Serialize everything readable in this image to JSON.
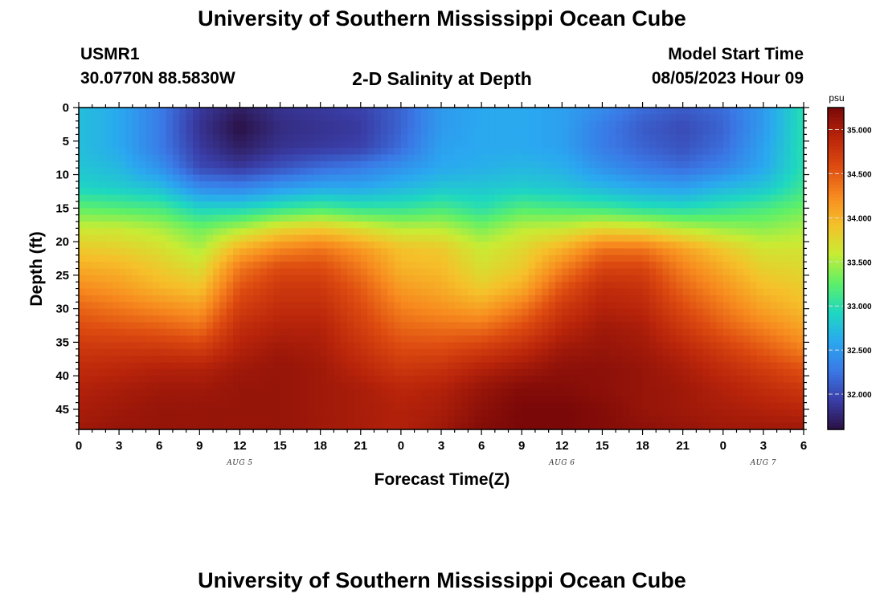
{
  "page": {
    "title_top": "University of Southern Mississippi Ocean Cube",
    "title_bottom": "University of Southern Mississippi Ocean Cube",
    "station_id": "USMR1",
    "station_coords": "30.0770N  88.5830W",
    "plot_title": "2-D Salinity at Depth",
    "model_start_label": "Model Start Time",
    "model_start_value": "08/05/2023 Hour 09"
  },
  "chart_data": {
    "type": "heatmap",
    "title": "2-D Salinity at Depth",
    "xlabel": "Forecast Time(Z)",
    "ylabel": "Depth (ft)",
    "x_tick_labels": [
      "0",
      "3",
      "6",
      "9",
      "12",
      "15",
      "18",
      "21",
      "0",
      "3",
      "6",
      "9",
      "12",
      "15",
      "18",
      "21",
      "0",
      "3",
      "6"
    ],
    "x_range_hours": [
      0,
      54
    ],
    "date_labels": [
      {
        "text": "AUG 5",
        "hour": 12
      },
      {
        "text": "AUG 6",
        "hour": 36
      },
      {
        "text": "AUG 7",
        "hour": 51
      }
    ],
    "y_ticks": [
      0,
      5,
      10,
      15,
      20,
      25,
      30,
      35,
      40,
      45
    ],
    "y_tick_labels": [
      "0",
      "5",
      "10",
      "15",
      "20",
      "25",
      "30",
      "35",
      "40",
      "45"
    ],
    "ylim": [
      0,
      48
    ],
    "y_inverted": true,
    "colorbar": {
      "unit": "psu",
      "min": 31.6,
      "max": 35.25,
      "ticks": [
        32.0,
        32.5,
        33.0,
        33.5,
        34.0,
        34.5,
        35.0
      ],
      "tick_labels": [
        "32.000",
        "32.500",
        "33.000",
        "33.500",
        "34.000",
        "34.500",
        "35.000"
      ],
      "colors": [
        "#2b1145",
        "#3a3ea8",
        "#3a78e6",
        "#2aa8f0",
        "#1ed8c0",
        "#5ef068",
        "#c8ec34",
        "#f6c02a",
        "#f7881e",
        "#dd4a10",
        "#b8240a",
        "#7a0808"
      ]
    },
    "time_hours": [
      0,
      3,
      6,
      9,
      12,
      15,
      18,
      21,
      24,
      27,
      30,
      33,
      36,
      39,
      42,
      45,
      48,
      51,
      54
    ],
    "depth_ft": [
      0,
      3,
      6,
      9,
      12,
      15,
      18,
      21,
      24,
      27,
      30,
      33,
      36,
      39,
      42,
      45,
      48
    ],
    "salinity_psu": [
      [
        32.75,
        32.6,
        32.3,
        31.9,
        31.7,
        31.85,
        31.9,
        31.95,
        32.15,
        32.5,
        32.6,
        32.6,
        32.55,
        32.4,
        32.2,
        32.1,
        32.2,
        32.5,
        33.0
      ],
      [
        32.75,
        32.6,
        32.3,
        31.85,
        31.6,
        31.8,
        31.85,
        31.9,
        32.15,
        32.5,
        32.6,
        32.6,
        32.55,
        32.3,
        32.1,
        32.0,
        32.15,
        32.5,
        33.0
      ],
      [
        32.75,
        32.6,
        32.3,
        31.9,
        31.7,
        31.85,
        31.9,
        31.95,
        32.2,
        32.55,
        32.6,
        32.6,
        32.55,
        32.3,
        32.15,
        32.05,
        32.2,
        32.55,
        33.0
      ],
      [
        32.8,
        32.7,
        32.45,
        32.0,
        31.9,
        32.05,
        32.2,
        32.3,
        32.45,
        32.6,
        32.65,
        32.7,
        32.65,
        32.45,
        32.3,
        32.2,
        32.35,
        32.6,
        33.0
      ],
      [
        32.9,
        32.85,
        32.75,
        32.4,
        32.35,
        32.5,
        32.6,
        32.6,
        32.7,
        32.8,
        32.8,
        32.85,
        32.8,
        32.7,
        32.6,
        32.55,
        32.7,
        32.8,
        33.1
      ],
      [
        33.25,
        33.2,
        33.15,
        32.9,
        32.9,
        33.05,
        33.15,
        33.05,
        33.05,
        33.15,
        33.0,
        33.2,
        33.15,
        33.1,
        33.0,
        32.95,
        33.05,
        33.15,
        33.3
      ],
      [
        33.6,
        33.6,
        33.5,
        33.3,
        33.5,
        33.75,
        33.85,
        33.7,
        33.55,
        33.55,
        33.35,
        33.55,
        33.6,
        33.75,
        33.7,
        33.55,
        33.45,
        33.4,
        33.5
      ],
      [
        33.85,
        33.8,
        33.7,
        33.5,
        34.0,
        34.25,
        34.35,
        34.15,
        33.9,
        33.85,
        33.6,
        33.75,
        34.0,
        34.35,
        34.35,
        34.1,
        33.85,
        33.65,
        33.65
      ],
      [
        34.05,
        34.0,
        33.85,
        33.7,
        34.35,
        34.6,
        34.6,
        34.35,
        34.0,
        33.95,
        33.7,
        33.85,
        34.3,
        34.65,
        34.65,
        34.3,
        34.05,
        33.8,
        33.75
      ],
      [
        34.25,
        34.15,
        34.0,
        33.9,
        34.55,
        34.75,
        34.75,
        34.5,
        34.15,
        34.05,
        33.85,
        34.05,
        34.55,
        34.85,
        34.8,
        34.45,
        34.2,
        33.95,
        33.85
      ],
      [
        34.45,
        34.35,
        34.25,
        34.15,
        34.7,
        34.85,
        34.85,
        34.6,
        34.3,
        34.2,
        34.1,
        34.35,
        34.75,
        34.95,
        34.9,
        34.6,
        34.35,
        34.1,
        33.95
      ],
      [
        34.6,
        34.55,
        34.5,
        34.4,
        34.85,
        34.95,
        34.95,
        34.7,
        34.45,
        34.4,
        34.4,
        34.6,
        34.9,
        35.05,
        35.0,
        34.75,
        34.5,
        34.3,
        34.1
      ],
      [
        34.75,
        34.75,
        34.75,
        34.7,
        34.95,
        35.05,
        35.0,
        34.8,
        34.6,
        34.6,
        34.7,
        34.85,
        35.05,
        35.1,
        35.05,
        34.9,
        34.7,
        34.5,
        34.3
      ],
      [
        34.85,
        34.9,
        34.95,
        34.95,
        35.05,
        35.1,
        35.05,
        34.9,
        34.75,
        34.8,
        34.95,
        35.05,
        35.15,
        35.15,
        35.1,
        35.0,
        34.85,
        34.7,
        34.55
      ],
      [
        34.95,
        35.0,
        35.05,
        35.05,
        35.1,
        35.1,
        35.05,
        35.0,
        34.9,
        34.95,
        35.1,
        35.2,
        35.2,
        35.15,
        35.1,
        35.05,
        34.95,
        34.85,
        34.75
      ],
      [
        35.0,
        35.05,
        35.1,
        35.1,
        35.1,
        35.1,
        35.05,
        35.0,
        34.95,
        35.0,
        35.15,
        35.25,
        35.25,
        35.2,
        35.1,
        35.05,
        35.0,
        34.95,
        34.9
      ],
      [
        35.05,
        35.1,
        35.1,
        35.1,
        35.1,
        35.1,
        35.05,
        35.0,
        34.95,
        35.05,
        35.2,
        35.25,
        35.25,
        35.2,
        35.15,
        35.1,
        35.05,
        35.05,
        35.05
      ]
    ]
  }
}
